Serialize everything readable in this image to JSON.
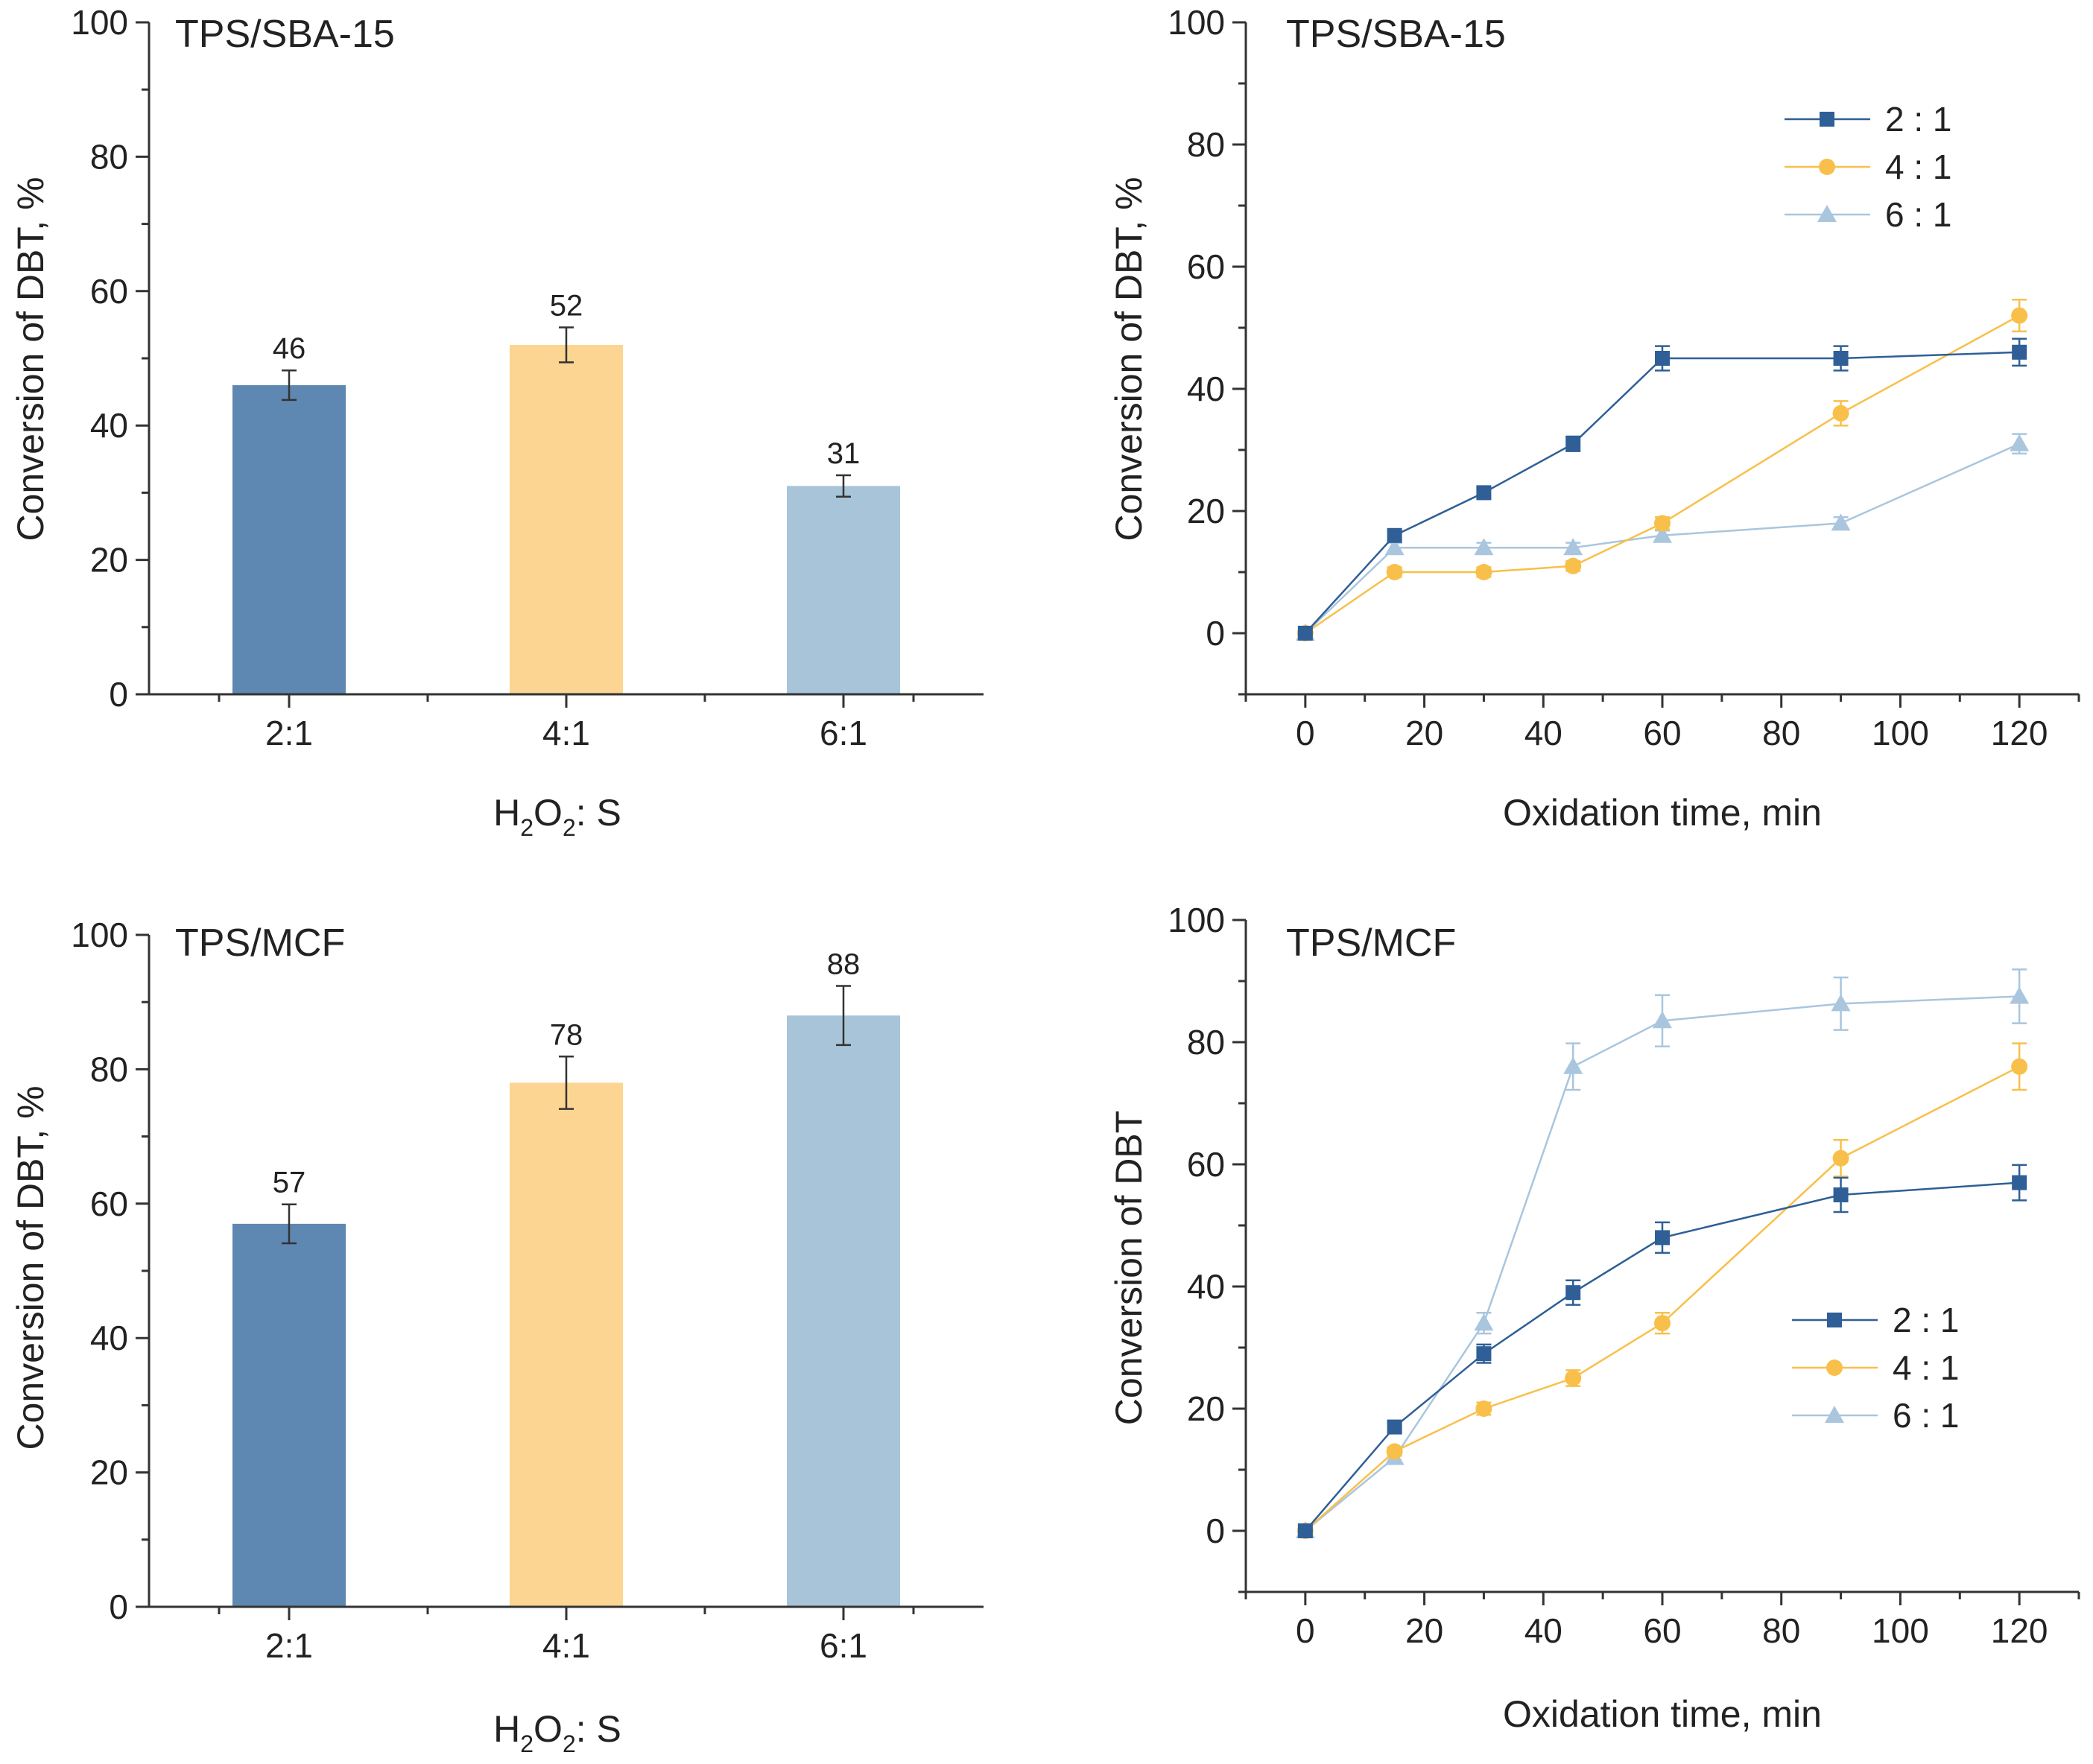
{
  "figure": {
    "colors": {
      "s21": "#2f5f96",
      "s41": "#f8c04a",
      "s61": "#a9c6de",
      "bar21": "#5e88b2",
      "bar41": "#fcd592",
      "bar61": "#a8c4d8"
    }
  },
  "chart_data": [
    {
      "id": "p1",
      "type": "bar",
      "title": "TPS/SBA-15",
      "ylabel": "Conversion of DBT, %",
      "xlabel": {
        "pre": "H",
        "sub1": "2",
        "mid": "O",
        "sub2": "2",
        "post": ": S"
      },
      "categories": [
        "2:1",
        "4:1",
        "6:1"
      ],
      "values": [
        46,
        52,
        31
      ],
      "value_labels": [
        "46",
        "52",
        "31"
      ],
      "errors": [
        2.2,
        2.6,
        1.6
      ],
      "ylim": [
        0,
        100
      ],
      "yticks": [
        0,
        20,
        40,
        60,
        80,
        100
      ],
      "ytick_labels": [
        "0",
        "20",
        "40",
        "60",
        "80",
        "100"
      ],
      "bar_colors": [
        "#5e88b2",
        "#fcd592",
        "#a8c4d8"
      ]
    },
    {
      "id": "p2",
      "type": "line",
      "title": "TPS/SBA-15",
      "ylabel": "Conversion of DBT, %",
      "xlabel": "Oxidation time, min",
      "x": [
        0,
        15,
        30,
        45,
        60,
        90,
        120
      ],
      "xlim": [
        -10,
        130
      ],
      "xticks": [
        0,
        20,
        40,
        60,
        80,
        100,
        120
      ],
      "xtick_labels": [
        "0",
        "20",
        "40",
        "60",
        "80",
        "100",
        "120"
      ],
      "ylim": [
        -10,
        100
      ],
      "yticks": [
        0,
        20,
        40,
        60,
        80,
        100
      ],
      "ytick_labels": [
        "0",
        "20",
        "40",
        "60",
        "80",
        "100"
      ],
      "legend_position": "top-right",
      "series": [
        {
          "name": "2 : 1",
          "marker": "square",
          "color": "#2f5f96",
          "values": [
            0,
            16,
            23,
            31,
            45,
            45,
            46
          ],
          "errors": [
            0,
            0.8,
            0.8,
            1.2,
            2.0,
            2.0,
            2.2
          ]
        },
        {
          "name": "4 : 1",
          "marker": "circle",
          "color": "#f8c04a",
          "values": [
            0,
            10,
            10,
            11,
            18,
            36,
            52
          ],
          "errors": [
            0,
            0.8,
            0.8,
            0.8,
            1.0,
            2.0,
            2.6
          ]
        },
        {
          "name": "6 : 1",
          "marker": "triangle",
          "color": "#a9c6de",
          "values": [
            0,
            14,
            14,
            14,
            16,
            18,
            31
          ],
          "errors": [
            0,
            0.8,
            0.8,
            0.8,
            0.8,
            1.0,
            1.6
          ]
        }
      ]
    },
    {
      "id": "p3",
      "type": "bar",
      "title": "TPS/MCF",
      "ylabel": "Conversion of DBT, %",
      "xlabel": {
        "pre": "H",
        "sub1": "2",
        "mid": "O",
        "sub2": "2",
        "post": ": S"
      },
      "categories": [
        "2:1",
        "4:1",
        "6:1"
      ],
      "values": [
        57,
        78,
        88
      ],
      "value_labels": [
        "57",
        "78",
        "88"
      ],
      "errors": [
        2.9,
        3.9,
        4.4
      ],
      "ylim": [
        0,
        100
      ],
      "yticks": [
        0,
        20,
        40,
        60,
        80,
        100
      ],
      "ytick_labels": [
        "0",
        "20",
        "40",
        "60",
        "80",
        "100"
      ],
      "bar_colors": [
        "#5e88b2",
        "#fcd592",
        "#a8c4d8"
      ]
    },
    {
      "id": "p4",
      "type": "line",
      "title": "TPS/MCF",
      "ylabel": "Conversion of DBT",
      "xlabel": "Oxidation time, min",
      "x": [
        0,
        15,
        30,
        45,
        60,
        90,
        120
      ],
      "xlim": [
        -10,
        130
      ],
      "xticks": [
        0,
        20,
        40,
        60,
        80,
        100,
        120
      ],
      "xtick_labels": [
        "0",
        "20",
        "40",
        "60",
        "80",
        "100",
        "120"
      ],
      "ylim": [
        -10,
        100
      ],
      "yticks": [
        0,
        20,
        40,
        60,
        80,
        100
      ],
      "ytick_labels": [
        "0",
        "20",
        "40",
        "60",
        "80",
        "100"
      ],
      "legend_position": "bottom-right",
      "series": [
        {
          "name": "2 : 1",
          "marker": "square",
          "color": "#2f5f96",
          "values": [
            0,
            17,
            29,
            39,
            48,
            55,
            57
          ],
          "errors": [
            0,
            0.8,
            1.5,
            2.0,
            2.5,
            2.8,
            2.9
          ]
        },
        {
          "name": "4 : 1",
          "marker": "circle",
          "color": "#f8c04a",
          "values": [
            0,
            13,
            20,
            25,
            34,
            61,
            76
          ],
          "errors": [
            0,
            0.7,
            1.0,
            1.3,
            1.7,
            3.0,
            3.8
          ]
        },
        {
          "name": "6 : 1",
          "marker": "triangle",
          "color": "#a9c6de",
          "values": [
            0,
            12,
            34,
            76,
            83.5,
            86.3,
            87.5
          ],
          "errors": [
            0,
            0.6,
            1.7,
            3.8,
            4.2,
            4.3,
            4.4
          ]
        }
      ]
    }
  ]
}
